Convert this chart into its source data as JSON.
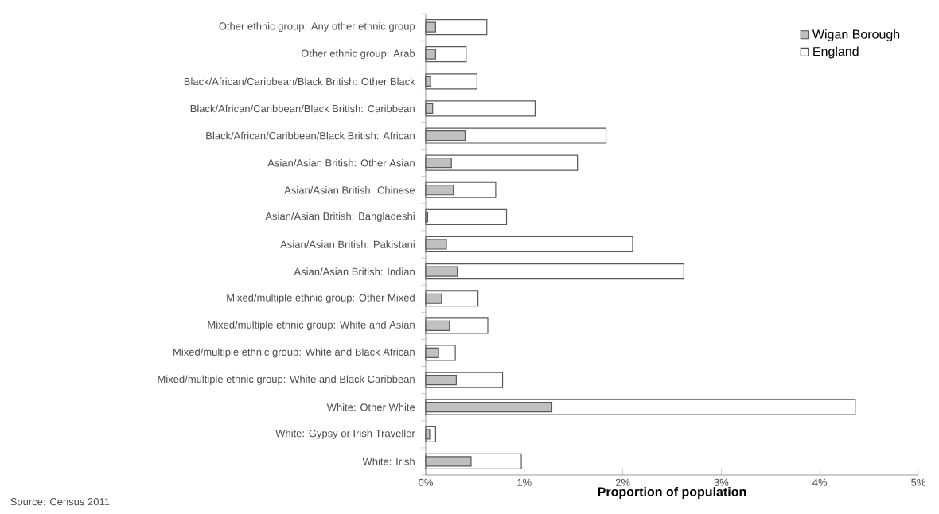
{
  "chart_data": {
    "type": "bar",
    "orientation": "horizontal",
    "xlabel": "Proportion of population",
    "categories": [
      "Other ethnic group: Any other ethnic group",
      "Other ethnic group: Arab",
      "Black/African/Caribbean/Black British: Other Black",
      "Black/African/Caribbean/Black British: Caribbean",
      "Black/African/Caribbean/Black British: African",
      "Asian/Asian British: Other Asian",
      "Asian/Asian British: Chinese",
      "Asian/Asian British: Bangladeshi",
      "Asian/Asian British: Pakistani",
      "Asian/Asian British: Indian",
      "Mixed/multiple ethnic group: Other Mixed",
      "Mixed/multiple ethnic group: White and Asian",
      "Mixed/multiple ethnic group: White and Black African",
      "Mixed/multiple ethnic group: White and Black Caribbean",
      "White: Other White",
      "White: Gypsy or Irish Traveller",
      "White: Irish"
    ],
    "series": [
      {
        "name": "Wigan Borough",
        "color": "#c0c0c0",
        "values": [
          0.1,
          0.1,
          0.05,
          0.07,
          0.4,
          0.26,
          0.28,
          0.02,
          0.21,
          0.32,
          0.16,
          0.24,
          0.13,
          0.31,
          1.28,
          0.04,
          0.46
        ]
      },
      {
        "name": "England",
        "color": "#ffffff",
        "values": [
          0.62,
          0.41,
          0.52,
          1.11,
          1.83,
          1.54,
          0.71,
          0.82,
          2.1,
          2.62,
          0.53,
          0.63,
          0.3,
          0.78,
          4.36,
          0.1,
          0.97
        ]
      }
    ],
    "xlim": [
      0,
      5
    ],
    "xticks": [
      {
        "value": 0,
        "label": "0%"
      },
      {
        "value": 1,
        "label": "1%"
      },
      {
        "value": 2,
        "label": "2%"
      },
      {
        "value": 3,
        "label": "3%"
      },
      {
        "value": 4,
        "label": "4%"
      },
      {
        "value": 5,
        "label": "5%"
      }
    ],
    "legend": "top right",
    "grid": false,
    "annotations": [
      "Source: Census 2011"
    ]
  }
}
